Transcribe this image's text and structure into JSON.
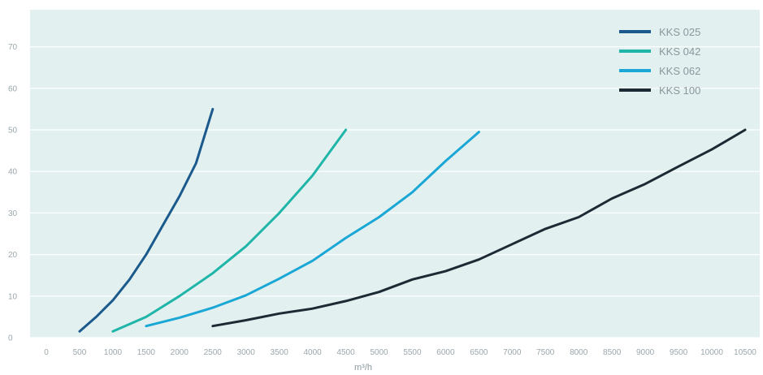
{
  "chart_data": {
    "type": "line",
    "xlabel": "m³/h",
    "ylabel": "",
    "xlim": [
      0,
      10500
    ],
    "ylim": [
      0,
      75
    ],
    "x_ticks": [
      0,
      500,
      1000,
      1500,
      2000,
      2500,
      3000,
      3500,
      4000,
      4500,
      5000,
      5500,
      6000,
      6500,
      7000,
      7500,
      8000,
      8500,
      9000,
      9500,
      10000,
      10500
    ],
    "y_ticks": [
      0,
      10,
      20,
      30,
      40,
      50,
      60,
      70
    ],
    "grid": "horizontal",
    "legend_position": "top-right",
    "background": "#e2f0f0",
    "series": [
      {
        "name": "KKS 025",
        "color": "#1b5a8c",
        "points": [
          [
            500,
            1.5
          ],
          [
            750,
            5
          ],
          [
            1000,
            9
          ],
          [
            1250,
            14
          ],
          [
            1500,
            20
          ],
          [
            1750,
            27
          ],
          [
            2000,
            34
          ],
          [
            2250,
            42
          ],
          [
            2500,
            55
          ]
        ]
      },
      {
        "name": "KKS 042",
        "color": "#1fb5a8",
        "points": [
          [
            1000,
            1.5
          ],
          [
            1500,
            5
          ],
          [
            2000,
            10
          ],
          [
            2500,
            15.5
          ],
          [
            3000,
            22
          ],
          [
            3500,
            30
          ],
          [
            4000,
            39
          ],
          [
            4500,
            50
          ]
        ]
      },
      {
        "name": "KKS 062",
        "color": "#1aa7d6",
        "points": [
          [
            1500,
            2.8
          ],
          [
            2000,
            4.8
          ],
          [
            2500,
            7.2
          ],
          [
            3000,
            10.2
          ],
          [
            3500,
            14.2
          ],
          [
            4000,
            18.5
          ],
          [
            4500,
            24
          ],
          [
            5000,
            29
          ],
          [
            5500,
            35
          ],
          [
            6000,
            42.5
          ],
          [
            6500,
            49.5
          ]
        ]
      },
      {
        "name": "KKS 100",
        "color": "#1c2a33",
        "points": [
          [
            2500,
            2.8
          ],
          [
            3000,
            4.2
          ],
          [
            3500,
            5.8
          ],
          [
            4000,
            7
          ],
          [
            4500,
            8.8
          ],
          [
            5000,
            11
          ],
          [
            5500,
            14
          ],
          [
            6000,
            16
          ],
          [
            6500,
            18.8
          ],
          [
            7000,
            22.5
          ],
          [
            7500,
            26.2
          ],
          [
            8000,
            29
          ],
          [
            8500,
            33.5
          ],
          [
            9000,
            37
          ],
          [
            9500,
            41.2
          ],
          [
            10000,
            45.3
          ],
          [
            10500,
            50
          ]
        ]
      }
    ]
  }
}
